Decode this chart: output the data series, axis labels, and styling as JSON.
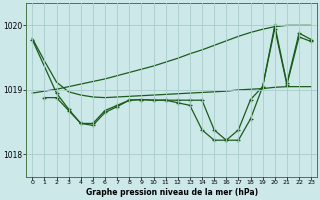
{
  "background_color": "#cce8e8",
  "grid_color": "#aacccc",
  "line_color": "#1a5c1a",
  "title": "Graphe pression niveau de la mer (hPa)",
  "xlim": [
    -0.5,
    23.5
  ],
  "ylim": [
    1017.65,
    1020.35
  ],
  "yticks": [
    1018,
    1019,
    1020
  ],
  "xticks": [
    0,
    1,
    2,
    3,
    4,
    5,
    6,
    7,
    8,
    9,
    10,
    11,
    12,
    13,
    14,
    15,
    16,
    17,
    18,
    19,
    20,
    21,
    22,
    23
  ],
  "series": [
    {
      "x": [
        0,
        1,
        2,
        3,
        4,
        5,
        6,
        7,
        8,
        9,
        10,
        11,
        12,
        13,
        14,
        15,
        16,
        17,
        18,
        19,
        20,
        21,
        22,
        23
      ],
      "y": [
        1019.8,
        1019.45,
        1019.12,
        1018.97,
        1018.92,
        1018.89,
        1018.88,
        1018.89,
        1018.9,
        1018.91,
        1018.92,
        1018.93,
        1018.94,
        1018.95,
        1018.96,
        1018.97,
        1018.98,
        1019.0,
        1019.01,
        1019.02,
        1019.04,
        1019.05,
        1019.05,
        1019.05
      ],
      "markers": false
    },
    {
      "x": [
        0,
        1,
        2,
        3,
        4,
        5,
        6,
        7,
        8,
        9,
        10,
        11,
        12,
        13,
        14,
        15,
        16,
        17,
        18,
        19,
        20,
        21,
        22,
        23
      ],
      "y": [
        1018.95,
        1018.98,
        1019.01,
        1019.05,
        1019.09,
        1019.13,
        1019.17,
        1019.22,
        1019.27,
        1019.32,
        1019.37,
        1019.43,
        1019.49,
        1019.56,
        1019.62,
        1019.69,
        1019.76,
        1019.83,
        1019.89,
        1019.94,
        1019.98,
        1020.0,
        1020.0,
        1020.0
      ],
      "markers": false
    },
    {
      "x": [
        1,
        2,
        3,
        4,
        5,
        6,
        7,
        8,
        9,
        10,
        11,
        12,
        13,
        14,
        15,
        16,
        17,
        18,
        19,
        20,
        21,
        22,
        23
      ],
      "y": [
        1018.88,
        1018.88,
        1018.68,
        1018.48,
        1018.48,
        1018.68,
        1018.76,
        1018.84,
        1018.85,
        1018.84,
        1018.84,
        1018.84,
        1018.84,
        1018.84,
        1018.38,
        1018.22,
        1018.22,
        1018.55,
        1019.05,
        1020.0,
        1019.1,
        1019.88,
        1019.78
      ],
      "markers": true
    },
    {
      "x": [
        0,
        2,
        3,
        4,
        5,
        6,
        7,
        8,
        9,
        10,
        11,
        12,
        13,
        14,
        15,
        16,
        17,
        18,
        19,
        20,
        21,
        22,
        23
      ],
      "y": [
        1019.78,
        1018.95,
        1018.7,
        1018.48,
        1018.45,
        1018.65,
        1018.74,
        1018.84,
        1018.85,
        1018.84,
        1018.84,
        1018.8,
        1018.76,
        1018.38,
        1018.22,
        1018.22,
        1018.38,
        1018.85,
        1019.05,
        1019.95,
        1019.08,
        1019.82,
        1019.75
      ],
      "markers": true
    }
  ]
}
